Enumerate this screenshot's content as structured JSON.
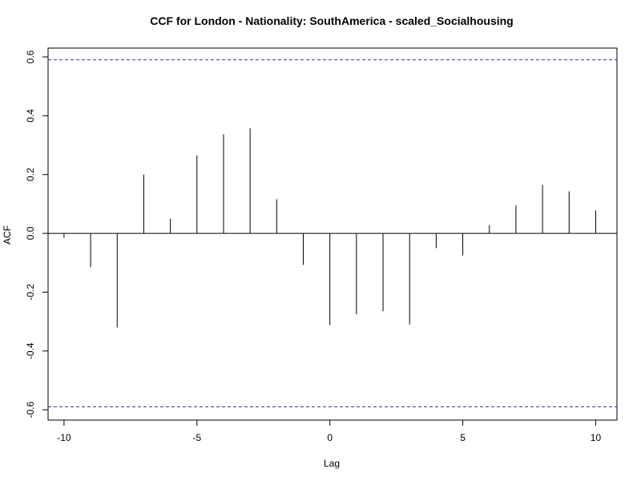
{
  "chart_data": {
    "type": "bar",
    "title": "CCF for London - Nationality: SouthAmerica - scaled_Socialhousing",
    "xlabel": "Lag",
    "ylabel": "ACF",
    "x": [
      -10,
      -9,
      -8,
      -7,
      -6,
      -5,
      -4,
      -3,
      -2,
      -1,
      0,
      1,
      2,
      3,
      4,
      5,
      6,
      7,
      8,
      9,
      10
    ],
    "values": [
      -0.015,
      -0.115,
      -0.32,
      0.2,
      0.05,
      0.265,
      0.337,
      0.357,
      0.116,
      -0.107,
      -0.312,
      -0.275,
      -0.265,
      -0.31,
      -0.05,
      -0.075,
      0.028,
      0.095,
      0.165,
      0.143,
      0.078
    ],
    "xlim": [
      -10.6,
      10.8
    ],
    "ylim": [
      -0.635,
      0.63
    ],
    "xticks": [
      -10,
      -5,
      0,
      5,
      10
    ],
    "yticks": [
      -0.6,
      -0.4,
      -0.2,
      0.0,
      0.2,
      0.4,
      0.6
    ],
    "confidence_bounds": [
      0.59,
      -0.59
    ],
    "colors": {
      "bars": "#000000",
      "confidence": "#3333cc",
      "axes": "#000000"
    },
    "grid": false,
    "legend": "none"
  }
}
